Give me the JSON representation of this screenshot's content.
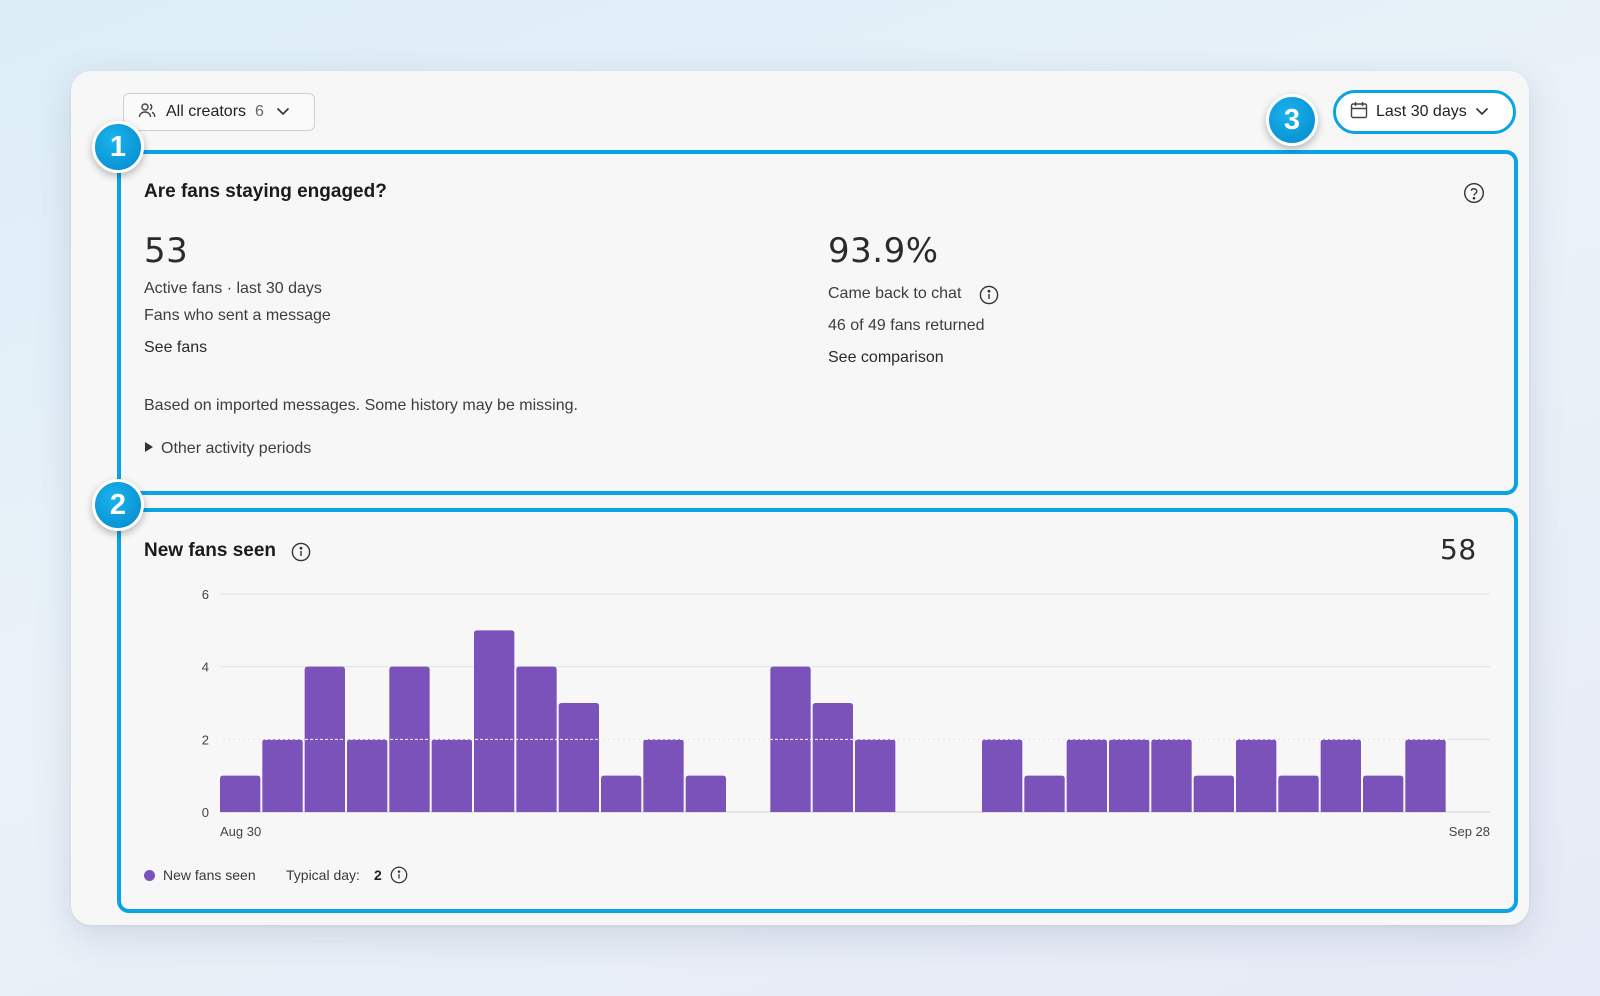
{
  "toolbar": {
    "creators_label": "All creators",
    "creators_count": "6",
    "date_range": "Last 30 days"
  },
  "badges": [
    "1",
    "2",
    "3"
  ],
  "engagement": {
    "title": "Are fans staying engaged?",
    "active_value": "53",
    "active_label": "Active fans · last 30 days",
    "active_sub": "Fans who sent a message",
    "active_link": "See fans",
    "return_value": "93.9%",
    "return_label": "Came back to chat",
    "return_sub": "46 of 49 fans returned",
    "return_link": "See comparison",
    "note": "Based on imported messages. Some history may be missing.",
    "disclosure": "Other activity periods"
  },
  "new_fans": {
    "title": "New fans seen",
    "total": "58",
    "legend_label": "New fans seen",
    "typical_label": "Typical day:",
    "typical_value": "2"
  },
  "colors": {
    "accent": "#0aa3e4",
    "bar": "#7a52b9"
  },
  "chart_data": {
    "type": "bar",
    "x_first_label": "Aug 30",
    "x_last_label": "Sep 28",
    "yticks": [
      0,
      2,
      4,
      6
    ],
    "ylim": [
      0,
      6
    ],
    "reference_line": 2,
    "series": [
      {
        "name": "New fans seen",
        "values": [
          1,
          2,
          4,
          2,
          4,
          2,
          5,
          4,
          3,
          1,
          2,
          1,
          0,
          4,
          3,
          2,
          0,
          0,
          2,
          1,
          2,
          2,
          2,
          1,
          2,
          1,
          2,
          1,
          2,
          0
        ]
      }
    ]
  }
}
